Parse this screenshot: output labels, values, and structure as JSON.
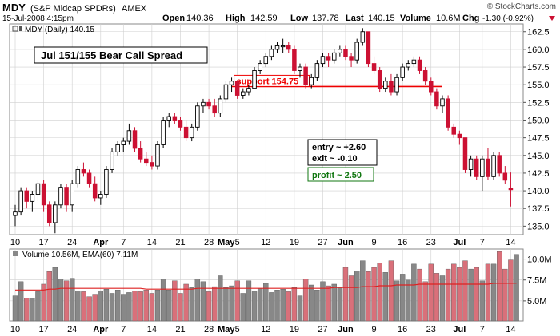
{
  "header": {
    "symbol": "MDY",
    "name": "(S&P Midcap SPDRs)",
    "exchange": "AMEX",
    "brand": "© StockCharts.com",
    "date": "15-Jul-2008 4:15pm",
    "quote": [
      {
        "label": "Open",
        "value": "140.36"
      },
      {
        "label": "High",
        "value": "142.59"
      },
      {
        "label": "Low",
        "value": "137.78"
      },
      {
        "label": "Last",
        "value": "140.15"
      },
      {
        "label": "Volume",
        "value": "10.6M"
      },
      {
        "label": "Chg",
        "value": "-1.30 (-0.92%)"
      }
    ]
  },
  "colors": {
    "up": "#000000",
    "down": "#cc1133",
    "support": "#ee0000",
    "profit": "#117711",
    "grid": "#cfcfcf",
    "ema": "#dd2222",
    "volume_up": "#888888",
    "volume_down": "#d9707a"
  },
  "chart_data": [
    {
      "type": "candlestick",
      "legend": "MDY (Daily) 140.15",
      "yticks": [
        135.0,
        137.5,
        140.0,
        142.5,
        145.0,
        147.5,
        150.0,
        152.5,
        155.0,
        157.5,
        160.0,
        162.5
      ],
      "ylim": [
        133.8,
        163.6
      ],
      "xticks": [
        {
          "label": "10",
          "index": 0,
          "bold": false
        },
        {
          "label": "17",
          "index": 5,
          "bold": false
        },
        {
          "label": "24",
          "index": 10,
          "bold": false
        },
        {
          "label": "Apr",
          "index": 15,
          "bold": true
        },
        {
          "label": "7",
          "index": 19,
          "bold": false
        },
        {
          "label": "14",
          "index": 24,
          "bold": false
        },
        {
          "label": "21",
          "index": 29,
          "bold": false
        },
        {
          "label": "28",
          "index": 34,
          "bold": false
        },
        {
          "label": "May",
          "index": 38,
          "bold": true
        },
        {
          "label": "5",
          "index": 39,
          "bold": false
        },
        {
          "label": "12",
          "index": 44,
          "bold": false
        },
        {
          "label": "19",
          "index": 49,
          "bold": false
        },
        {
          "label": "27",
          "index": 54,
          "bold": false
        },
        {
          "label": "Jun",
          "index": 58,
          "bold": true
        },
        {
          "label": "9",
          "index": 63,
          "bold": false
        },
        {
          "label": "16",
          "index": 68,
          "bold": false
        },
        {
          "label": "23",
          "index": 73,
          "bold": false
        },
        {
          "label": "Jul",
          "index": 78,
          "bold": true
        },
        {
          "label": "7",
          "index": 82,
          "bold": false
        },
        {
          "label": "14",
          "index": 87,
          "bold": false
        }
      ],
      "ohlc": [
        [
          136.5,
          138.0,
          135.0,
          137.0
        ],
        [
          137.0,
          140.5,
          136.5,
          140.0
        ],
        [
          140.0,
          140.5,
          137.5,
          138.5
        ],
        [
          138.5,
          140.0,
          137.0,
          139.5
        ],
        [
          139.5,
          141.5,
          138.5,
          141.0
        ],
        [
          141.0,
          141.5,
          137.0,
          138.0
        ],
        [
          138.0,
          138.5,
          135.0,
          135.5
        ],
        [
          135.5,
          138.5,
          134.0,
          138.0
        ],
        [
          138.0,
          141.0,
          137.5,
          140.5
        ],
        [
          140.5,
          141.0,
          137.0,
          138.0
        ],
        [
          138.0,
          141.5,
          137.0,
          141.0
        ],
        [
          141.0,
          143.5,
          140.5,
          143.0
        ],
        [
          143.0,
          144.0,
          142.0,
          142.5
        ],
        [
          142.5,
          143.0,
          140.5,
          141.0
        ],
        [
          141.0,
          142.0,
          138.5,
          139.0
        ],
        [
          139.0,
          140.0,
          138.0,
          139.5
        ],
        [
          139.5,
          143.5,
          139.0,
          143.0
        ],
        [
          143.0,
          146.0,
          142.5,
          145.5
        ],
        [
          145.5,
          147.0,
          145.0,
          146.5
        ],
        [
          146.5,
          147.5,
          145.5,
          147.0
        ],
        [
          147.0,
          149.5,
          146.5,
          148.5
        ],
        [
          148.5,
          149.0,
          145.5,
          146.0
        ],
        [
          146.0,
          147.0,
          144.0,
          144.5
        ],
        [
          144.5,
          145.5,
          143.5,
          144.0
        ],
        [
          144.0,
          145.0,
          143.0,
          143.5
        ],
        [
          143.5,
          147.0,
          143.0,
          146.5
        ],
        [
          146.5,
          150.5,
          146.0,
          150.0
        ],
        [
          150.0,
          151.0,
          149.0,
          150.5
        ],
        [
          150.5,
          151.0,
          149.5,
          150.0
        ],
        [
          150.0,
          150.5,
          148.5,
          149.0
        ],
        [
          149.0,
          150.0,
          147.0,
          147.5
        ],
        [
          147.5,
          149.5,
          147.0,
          149.0
        ],
        [
          149.0,
          152.5,
          148.5,
          152.0
        ],
        [
          152.0,
          153.0,
          151.0,
          152.5
        ],
        [
          152.5,
          153.0,
          151.5,
          152.0
        ],
        [
          152.0,
          153.0,
          150.5,
          151.0
        ],
        [
          151.0,
          153.5,
          150.5,
          153.0
        ],
        [
          153.0,
          155.5,
          152.5,
          155.0
        ],
        [
          155.0,
          156.0,
          154.0,
          155.5
        ],
        [
          155.5,
          155.5,
          153.0,
          153.5
        ],
        [
          153.5,
          154.5,
          153.0,
          154.0
        ],
        [
          154.0,
          155.0,
          153.5,
          154.5
        ],
        [
          154.5,
          157.5,
          154.5,
          157.0
        ],
        [
          157.0,
          158.5,
          156.5,
          158.0
        ],
        [
          158.0,
          159.5,
          157.5,
          159.0
        ],
        [
          159.0,
          160.5,
          158.5,
          160.0
        ],
        [
          160.0,
          161.0,
          159.5,
          160.5
        ],
        [
          160.5,
          161.5,
          159.5,
          160.5
        ],
        [
          160.5,
          161.0,
          159.5,
          160.0
        ],
        [
          160.0,
          160.5,
          156.5,
          157.0
        ],
        [
          157.0,
          158.0,
          156.0,
          157.5
        ],
        [
          157.5,
          158.0,
          154.5,
          155.0
        ],
        [
          155.0,
          156.5,
          154.5,
          156.0
        ],
        [
          156.0,
          158.5,
          155.5,
          158.0
        ],
        [
          158.0,
          159.5,
          157.5,
          159.0
        ],
        [
          159.0,
          159.5,
          157.5,
          158.5
        ],
        [
          158.5,
          160.0,
          158.0,
          159.5
        ],
        [
          159.5,
          160.5,
          159.0,
          160.0
        ],
        [
          160.0,
          160.5,
          158.5,
          159.0
        ],
        [
          159.0,
          159.5,
          157.5,
          158.5
        ],
        [
          158.5,
          161.5,
          158.0,
          161.0
        ],
        [
          161.0,
          163.0,
          160.5,
          162.5
        ],
        [
          162.5,
          162.5,
          157.5,
          158.0
        ],
        [
          158.0,
          159.0,
          156.5,
          157.0
        ],
        [
          157.0,
          157.5,
          154.0,
          154.5
        ],
        [
          154.5,
          156.0,
          154.0,
          155.5
        ],
        [
          155.5,
          156.5,
          153.5,
          154.0
        ],
        [
          154.0,
          156.5,
          153.5,
          156.0
        ],
        [
          156.0,
          158.0,
          155.5,
          157.5
        ],
        [
          157.5,
          158.5,
          157.0,
          158.0
        ],
        [
          158.0,
          159.0,
          157.5,
          158.5
        ],
        [
          158.5,
          159.0,
          156.5,
          157.0
        ],
        [
          157.0,
          157.5,
          155.0,
          155.5
        ],
        [
          155.5,
          156.0,
          153.5,
          154.0
        ],
        [
          154.0,
          154.5,
          151.5,
          152.0
        ],
        [
          152.0,
          153.5,
          151.0,
          153.0
        ],
        [
          153.0,
          153.5,
          148.5,
          149.0
        ],
        [
          149.0,
          149.5,
          147.5,
          148.0
        ],
        [
          148.0,
          148.5,
          146.5,
          147.5
        ],
        [
          147.5,
          147.5,
          142.5,
          143.0
        ],
        [
          143.0,
          145.0,
          142.0,
          144.5
        ],
        [
          144.5,
          145.0,
          141.5,
          142.0
        ],
        [
          142.0,
          145.0,
          140.0,
          144.5
        ],
        [
          144.5,
          146.0,
          141.5,
          142.0
        ],
        [
          142.0,
          145.5,
          141.5,
          145.0
        ],
        [
          145.0,
          145.5,
          142.0,
          142.5
        ],
        [
          142.5,
          143.5,
          141.0,
          141.5
        ],
        [
          140.36,
          142.59,
          137.78,
          140.15
        ]
      ],
      "annotations": {
        "title": "Jul 151/155 Bear Call Spread",
        "support": {
          "label": "support 154.75",
          "value": 154.75,
          "from_index": 38,
          "to_index": 75
        },
        "entry": "entry ~ +2.60",
        "exit": "exit ~ -0.10",
        "profit": "profit ~ 2.50"
      }
    },
    {
      "type": "bar",
      "legend": "Volume 10.56M, EMA(60) 7.11M",
      "yticks": [
        {
          "label": "5.0M",
          "value": 5.0
        },
        {
          "label": "7.5M",
          "value": 7.5
        },
        {
          "label": "10.0M",
          "value": 10.0
        }
      ],
      "ylim": [
        2.6,
        11.2
      ],
      "unit": "M",
      "values": [
        5.6,
        7.3,
        5.3,
        5.3,
        6.1,
        7.0,
        8.5,
        9.0,
        7.6,
        7.4,
        7.7,
        6.2,
        6.1,
        5.5,
        5.7,
        6.2,
        6.4,
        5.9,
        6.3,
        5.7,
        6.0,
        6.2,
        6.1,
        6.3,
        5.9,
        6.3,
        7.6,
        6.3,
        7.4,
        5.9,
        7.0,
        6.6,
        7.6,
        7.3,
        6.1,
        6.7,
        8.0,
        6.6,
        6.8,
        7.4,
        5.9,
        7.4,
        6.1,
        6.5,
        7.1,
        6.0,
        6.3,
        6.4,
        6.1,
        6.6,
        5.6,
        7.6,
        6.9,
        6.3,
        7.3,
        6.8,
        7.0,
        6.6,
        9.0,
        8.0,
        8.6,
        9.8,
        8.5,
        9.0,
        9.5,
        8.4,
        9.8,
        7.4,
        8.2,
        7.5,
        9.4,
        8.8,
        7.3,
        9.4,
        8.3,
        8.0,
        8.8,
        9.4,
        9.0,
        9.8,
        8.8,
        9.0,
        7.4,
        9.4,
        9.4,
        10.9,
        8.8,
        9.9,
        10.56
      ],
      "ema60": [
        6.3,
        6.3,
        6.3,
        6.3,
        6.3,
        6.3,
        6.4,
        6.4,
        6.5,
        6.5,
        6.5,
        6.5,
        6.5,
        6.5,
        6.5,
        6.5,
        6.5,
        6.5,
        6.5,
        6.5,
        6.5,
        6.5,
        6.5,
        6.4,
        6.4,
        6.4,
        6.4,
        6.4,
        6.4,
        6.4,
        6.4,
        6.4,
        6.5,
        6.5,
        6.5,
        6.5,
        6.5,
        6.5,
        6.5,
        6.5,
        6.5,
        6.5,
        6.5,
        6.5,
        6.5,
        6.5,
        6.5,
        6.5,
        6.5,
        6.5,
        6.5,
        6.5,
        6.5,
        6.5,
        6.5,
        6.5,
        6.6,
        6.6,
        6.6,
        6.6,
        6.6,
        6.7,
        6.7,
        6.7,
        6.8,
        6.8,
        6.8,
        6.9,
        6.9,
        6.9,
        6.9,
        7.0,
        7.0,
        7.0,
        7.0,
        7.0,
        7.0,
        7.0,
        7.0,
        7.0,
        7.0,
        7.0,
        7.0,
        7.0,
        7.1,
        7.1,
        7.1,
        7.1,
        7.11
      ]
    }
  ]
}
